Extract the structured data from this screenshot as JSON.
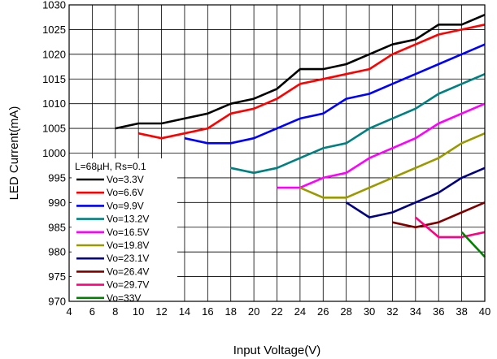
{
  "chart_data": {
    "type": "line",
    "title": "",
    "xlabel": "Input Voltage(V)",
    "ylabel": "LED Current(mA)",
    "xlim": [
      4,
      40
    ],
    "ylim": [
      970,
      1030
    ],
    "xticks": [
      4,
      6,
      8,
      10,
      12,
      14,
      16,
      18,
      20,
      22,
      24,
      26,
      28,
      30,
      32,
      34,
      36,
      38,
      40
    ],
    "yticks": [
      970,
      975,
      980,
      985,
      990,
      995,
      1000,
      1005,
      1010,
      1015,
      1020,
      1025,
      1030
    ],
    "grid": true,
    "legend_title": "L=68µH, Rs=0.1",
    "legend_position": "left",
    "series": [
      {
        "name": "Vo=3.3V",
        "color": "#000000",
        "x": [
          8,
          10,
          12,
          14,
          16,
          18,
          20,
          22,
          24,
          26,
          28,
          30,
          32,
          34,
          36,
          38,
          40
        ],
        "y": [
          1005,
          1006,
          1006,
          1007,
          1008,
          1010,
          1011,
          1013,
          1017,
          1017,
          1018,
          1020,
          1022,
          1023,
          1026,
          1026,
          1028
        ]
      },
      {
        "name": "Vo=6.6V",
        "color": "#ff0000",
        "x": [
          10,
          12,
          14,
          16,
          18,
          20,
          22,
          24,
          26,
          28,
          30,
          32,
          34,
          36,
          38,
          40
        ],
        "y": [
          1004,
          1003,
          1004,
          1005,
          1008,
          1009,
          1011,
          1014,
          1015,
          1016,
          1017,
          1020,
          1022,
          1024,
          1025,
          1026
        ]
      },
      {
        "name": "Vo=9.9V",
        "color": "#0000ff",
        "x": [
          14,
          16,
          18,
          20,
          22,
          24,
          26,
          28,
          30,
          32,
          34,
          36,
          38,
          40
        ],
        "y": [
          1003,
          1002,
          1002,
          1003,
          1005,
          1007,
          1008,
          1011,
          1012,
          1014,
          1016,
          1018,
          1020,
          1022
        ]
      },
      {
        "name": "Vo=13.2V",
        "color": "#008080",
        "x": [
          18,
          20,
          22,
          24,
          26,
          28,
          30,
          32,
          34,
          36,
          38,
          40
        ],
        "y": [
          997,
          996,
          997,
          999,
          1001,
          1002,
          1005,
          1007,
          1009,
          1012,
          1014,
          1016
        ]
      },
      {
        "name": "Vo=16.5V",
        "color": "#ff00ff",
        "x": [
          22,
          24,
          26,
          28,
          30,
          32,
          34,
          36,
          38,
          40
        ],
        "y": [
          993,
          993,
          995,
          996,
          999,
          1001,
          1003,
          1006,
          1008,
          1010
        ]
      },
      {
        "name": "Vo=19.8V",
        "color": "#999900",
        "x": [
          24,
          26,
          28,
          30,
          32,
          34,
          36,
          38,
          40
        ],
        "y": [
          993,
          991,
          991,
          993,
          995,
          997,
          999,
          1002,
          1004
        ]
      },
      {
        "name": "Vo=23.1V",
        "color": "#000080",
        "x": [
          28,
          30,
          32,
          34,
          36,
          38,
          40
        ],
        "y": [
          990,
          987,
          988,
          990,
          992,
          995,
          997
        ]
      },
      {
        "name": "Vo=26.4V",
        "color": "#800000",
        "x": [
          32,
          34,
          36,
          38,
          40
        ],
        "y": [
          986,
          985,
          986,
          988,
          990
        ]
      },
      {
        "name": "Vo=29.7V",
        "color": "#ff0080",
        "x": [
          34,
          36,
          38,
          40
        ],
        "y": [
          987,
          983,
          983,
          984
        ]
      },
      {
        "name": "Vo=33V",
        "color": "#008000",
        "x": [
          38,
          40
        ],
        "y": [
          984,
          979
        ]
      }
    ]
  }
}
